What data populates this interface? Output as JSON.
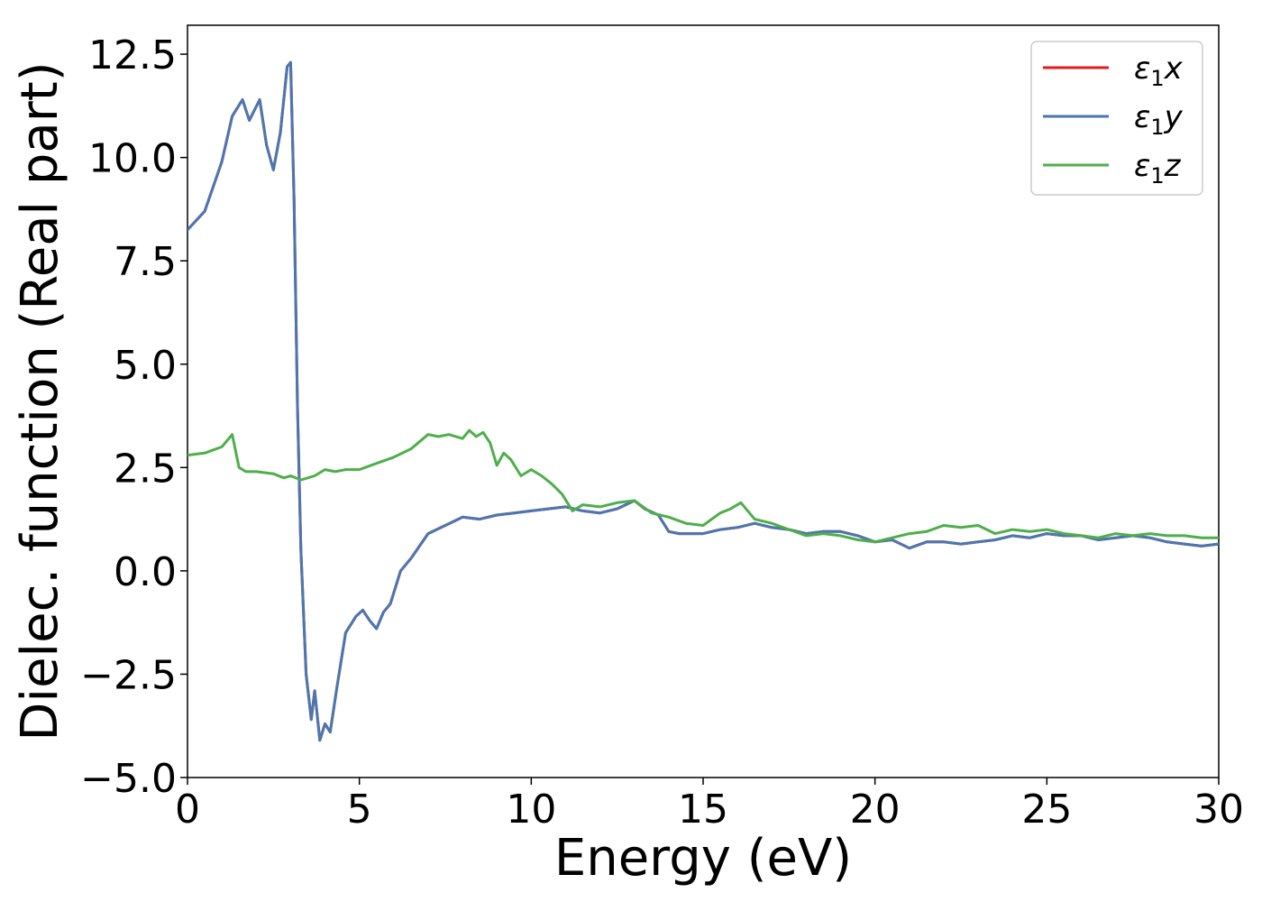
{
  "chart_data": {
    "type": "line",
    "title": "",
    "xlabel": "Energy (eV)",
    "ylabel": "Dielec. function (Real part)",
    "xlim": [
      0,
      30
    ],
    "ylim": [
      -5.0,
      13.2
    ],
    "xticks": [
      "0",
      "5",
      "10",
      "15",
      "20",
      "25",
      "30"
    ],
    "xtick_values": [
      0,
      5,
      10,
      15,
      20,
      25,
      30
    ],
    "yticks": [
      "−5.0",
      "−2.5",
      "0.0",
      "2.5",
      "5.0",
      "7.5",
      "10.0",
      "12.5"
    ],
    "ytick_values": [
      -5.0,
      -2.5,
      0.0,
      2.5,
      5.0,
      7.5,
      10.0,
      12.5
    ],
    "grid": false,
    "legend_position": "top-right",
    "series": [
      {
        "name": "ε1x",
        "legend_base": "ε",
        "legend_sub": "1",
        "legend_tail": "x",
        "color": "#e41a1c",
        "x": [
          0.0,
          0.5,
          1.0,
          1.3,
          1.6,
          1.8,
          2.1,
          2.3,
          2.5,
          2.7,
          2.9,
          3.0,
          3.1,
          3.2,
          3.3,
          3.45,
          3.6,
          3.7,
          3.85,
          4.0,
          4.15,
          4.35,
          4.6,
          4.9,
          5.1,
          5.3,
          5.5,
          5.7,
          5.9,
          6.2,
          6.5,
          7.0,
          7.5,
          8.0,
          8.5,
          9.0,
          9.5,
          10.0,
          10.5,
          11.0,
          11.5,
          12.0,
          12.5,
          13.0,
          13.3,
          13.7,
          14.0,
          14.3,
          15.0,
          15.5,
          16.0,
          16.5,
          17.0,
          17.5,
          18.0,
          18.5,
          19.0,
          19.5,
          20.0,
          20.5,
          21.0,
          21.5,
          22.0,
          22.5,
          23.0,
          23.5,
          24.0,
          24.5,
          25.0,
          25.5,
          26.0,
          26.5,
          27.0,
          27.5,
          28.0,
          28.5,
          29.0,
          29.5,
          30.0
        ],
        "y": [
          8.25,
          8.7,
          9.9,
          11.0,
          11.4,
          10.9,
          11.4,
          10.3,
          9.7,
          10.6,
          12.2,
          12.3,
          9.0,
          4.0,
          0.5,
          -2.5,
          -3.6,
          -2.9,
          -4.1,
          -3.7,
          -3.9,
          -2.8,
          -1.5,
          -1.1,
          -0.95,
          -1.2,
          -1.4,
          -1.0,
          -0.8,
          0.0,
          0.3,
          0.9,
          1.1,
          1.3,
          1.25,
          1.35,
          1.4,
          1.45,
          1.5,
          1.55,
          1.45,
          1.4,
          1.5,
          1.7,
          1.5,
          1.35,
          0.95,
          0.9,
          0.9,
          1.0,
          1.05,
          1.15,
          1.05,
          1.0,
          0.9,
          0.95,
          0.95,
          0.85,
          0.7,
          0.75,
          0.55,
          0.7,
          0.7,
          0.65,
          0.7,
          0.75,
          0.85,
          0.8,
          0.9,
          0.85,
          0.85,
          0.75,
          0.8,
          0.85,
          0.8,
          0.7,
          0.65,
          0.6,
          0.65
        ]
      },
      {
        "name": "ε1y",
        "legend_base": "ε",
        "legend_sub": "1",
        "legend_tail": "y",
        "color": "#4a77b2",
        "x": [
          0.0,
          0.5,
          1.0,
          1.3,
          1.6,
          1.8,
          2.1,
          2.3,
          2.5,
          2.7,
          2.9,
          3.0,
          3.1,
          3.2,
          3.3,
          3.45,
          3.6,
          3.7,
          3.85,
          4.0,
          4.15,
          4.35,
          4.6,
          4.9,
          5.1,
          5.3,
          5.5,
          5.7,
          5.9,
          6.2,
          6.5,
          7.0,
          7.5,
          8.0,
          8.5,
          9.0,
          9.5,
          10.0,
          10.5,
          11.0,
          11.5,
          12.0,
          12.5,
          13.0,
          13.3,
          13.7,
          14.0,
          14.3,
          15.0,
          15.5,
          16.0,
          16.5,
          17.0,
          17.5,
          18.0,
          18.5,
          19.0,
          19.5,
          20.0,
          20.5,
          21.0,
          21.5,
          22.0,
          22.5,
          23.0,
          23.5,
          24.0,
          24.5,
          25.0,
          25.5,
          26.0,
          26.5,
          27.0,
          27.5,
          28.0,
          28.5,
          29.0,
          29.5,
          30.0
        ],
        "y": [
          8.25,
          8.7,
          9.9,
          11.0,
          11.4,
          10.9,
          11.4,
          10.3,
          9.7,
          10.6,
          12.2,
          12.3,
          9.0,
          4.0,
          0.5,
          -2.5,
          -3.6,
          -2.9,
          -4.1,
          -3.7,
          -3.9,
          -2.8,
          -1.5,
          -1.1,
          -0.95,
          -1.2,
          -1.4,
          -1.0,
          -0.8,
          0.0,
          0.3,
          0.9,
          1.1,
          1.3,
          1.25,
          1.35,
          1.4,
          1.45,
          1.5,
          1.55,
          1.45,
          1.4,
          1.5,
          1.7,
          1.5,
          1.35,
          0.95,
          0.9,
          0.9,
          1.0,
          1.05,
          1.15,
          1.05,
          1.0,
          0.9,
          0.95,
          0.95,
          0.85,
          0.7,
          0.75,
          0.55,
          0.7,
          0.7,
          0.65,
          0.7,
          0.75,
          0.85,
          0.8,
          0.9,
          0.85,
          0.85,
          0.75,
          0.8,
          0.85,
          0.8,
          0.7,
          0.65,
          0.6,
          0.65
        ]
      },
      {
        "name": "ε1z",
        "legend_base": "ε",
        "legend_sub": "1",
        "legend_tail": "z",
        "color": "#4daf4a",
        "x": [
          0.0,
          0.5,
          1.0,
          1.3,
          1.5,
          1.7,
          2.0,
          2.5,
          2.8,
          3.0,
          3.3,
          3.7,
          4.0,
          4.3,
          4.6,
          5.0,
          5.5,
          6.0,
          6.5,
          7.0,
          7.3,
          7.6,
          8.0,
          8.2,
          8.4,
          8.6,
          8.8,
          9.0,
          9.2,
          9.4,
          9.7,
          10.0,
          10.3,
          10.6,
          10.9,
          11.2,
          11.5,
          12.0,
          12.5,
          13.0,
          13.5,
          14.0,
          14.5,
          15.0,
          15.5,
          15.8,
          16.1,
          16.5,
          17.0,
          17.5,
          18.0,
          18.5,
          19.0,
          19.5,
          20.0,
          20.5,
          21.0,
          21.5,
          22.0,
          22.5,
          23.0,
          23.5,
          24.0,
          24.5,
          25.0,
          25.5,
          26.0,
          26.5,
          27.0,
          27.5,
          28.0,
          28.5,
          29.0,
          29.5,
          30.0
        ],
        "y": [
          2.8,
          2.85,
          3.0,
          3.3,
          2.5,
          2.4,
          2.4,
          2.35,
          2.25,
          2.3,
          2.2,
          2.3,
          2.45,
          2.4,
          2.45,
          2.45,
          2.6,
          2.75,
          2.95,
          3.3,
          3.25,
          3.3,
          3.2,
          3.4,
          3.25,
          3.35,
          3.1,
          2.55,
          2.85,
          2.7,
          2.3,
          2.45,
          2.3,
          2.1,
          1.85,
          1.45,
          1.6,
          1.55,
          1.65,
          1.7,
          1.4,
          1.3,
          1.15,
          1.1,
          1.4,
          1.5,
          1.65,
          1.25,
          1.15,
          1.0,
          0.85,
          0.9,
          0.85,
          0.75,
          0.7,
          0.8,
          0.9,
          0.95,
          1.1,
          1.05,
          1.1,
          0.9,
          1.0,
          0.95,
          1.0,
          0.9,
          0.85,
          0.8,
          0.9,
          0.85,
          0.9,
          0.85,
          0.85,
          0.8,
          0.8
        ]
      }
    ]
  }
}
